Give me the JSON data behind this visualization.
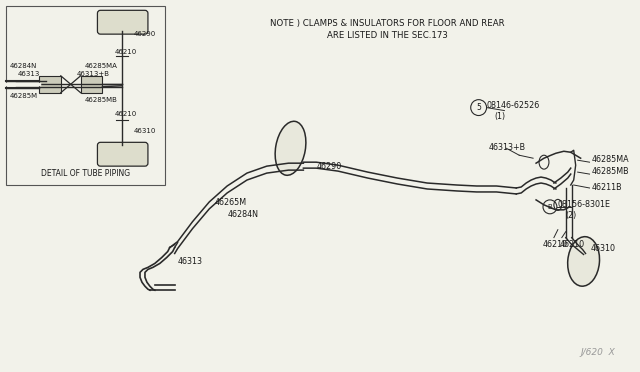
{
  "bg_color": "#f2f2ea",
  "line_color": "#2a2a2a",
  "text_color": "#1a1a1a",
  "border_color": "#444444",
  "note_line1": "NOTE ) CLAMPS & INSULATORS FOR FLOOR AND REAR",
  "note_line2": "ARE LISTED IN THE SEC.173",
  "detail_label": "DETAIL OF TUBE PIPING",
  "watermark": "J/620  X",
  "figsize": [
    6.4,
    3.72
  ],
  "dpi": 100
}
